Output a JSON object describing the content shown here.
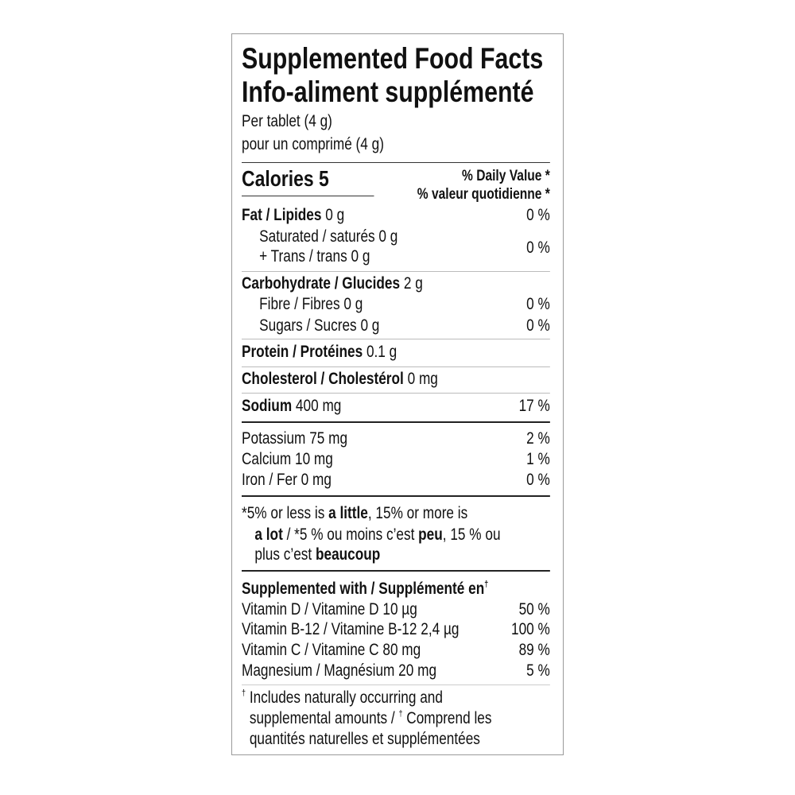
{
  "title_en": "Supplemented Food Facts",
  "title_fr": "Info-aliment supplémenté",
  "serving_en": "Per tablet (4 g)",
  "serving_fr": "pour un comprimé (4 g)",
  "calories_label": "Calories 5",
  "dv_en": "% Daily Value *",
  "dv_fr": "% valeur quotidienne *",
  "nutrients": [
    {
      "name": "Fat / Lipides",
      "amount": "0 g",
      "dv": "0 %"
    },
    {
      "name": "Saturated / saturés",
      "amount": "0 g"
    },
    {
      "name": "+ Trans / trans",
      "amount": "0 g",
      "dv": "0 %"
    },
    {
      "name": "Carbohydrate / Glucides",
      "amount": "2 g"
    },
    {
      "name": "Fibre / Fibres",
      "amount": "0 g",
      "dv": "0 %"
    },
    {
      "name": "Sugars / Sucres",
      "amount": "0 g",
      "dv": "0 %"
    },
    {
      "name": "Protein / Protéines",
      "amount": "0.1 g"
    },
    {
      "name": "Cholesterol / Cholestérol",
      "amount": "0 mg"
    },
    {
      "name": "Sodium",
      "amount": "400 mg",
      "dv": "17 %"
    },
    {
      "name": "Potassium",
      "amount": "75 mg",
      "dv": "2 %"
    },
    {
      "name": "Calcium",
      "amount": "10 mg",
      "dv": "1 %"
    },
    {
      "name": "Iron / Fer",
      "amount": "0 mg",
      "dv": "0 %"
    }
  ],
  "footnote": {
    "p1": "*5% or less is ",
    "b1": "a little",
    "p2": ", 15% or more is",
    "b2": "a lot",
    "p3": " / *5 % ou moins c’est ",
    "b3": "peu",
    "p4": ", 15 % ou",
    "p5": "plus c’est ",
    "b4": "beaucoup"
  },
  "supplemented": {
    "heading": "Supplemented with / Supplémenté en",
    "heading_mark": "†",
    "items": [
      {
        "name": "Vitamin D / Vitamine D 10 µg",
        "dv": "50 %"
      },
      {
        "name": "Vitamin B-12 / Vitamine B-12 2,4 µg",
        "dv": "100 %"
      },
      {
        "name": "Vitamin C / Vitamine C 80 mg",
        "dv": "89 %"
      },
      {
        "name": "Magnesium / Magnésium 20 mg",
        "dv": "5 %"
      }
    ]
  },
  "dagger_note": {
    "mark": "†",
    "l1": "Includes naturally occurring and",
    "l2": "supplemental amounts / ",
    "l2b": "Comprend les",
    "l3": "quantités naturelles et supplémentées"
  }
}
